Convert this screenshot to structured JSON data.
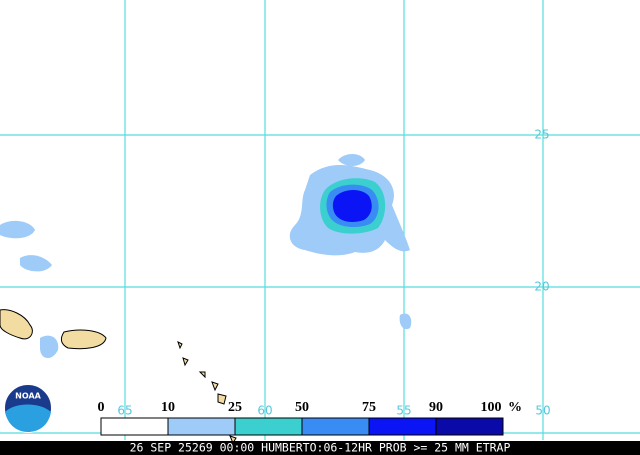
{
  "map": {
    "logo": "NOAA",
    "lat_labels": [
      "25",
      "20"
    ],
    "lon_labels": [
      "65",
      "60",
      "55",
      "50"
    ],
    "legend": {
      "labels": [
        "0",
        "10",
        "25",
        "50",
        "75",
        "90",
        "100"
      ],
      "unit": "%",
      "colors": [
        "#ffffff",
        "#9ecbf7",
        "#3ccfcf",
        "#3a8cf5",
        "#0a14f5",
        "#0a0aa8"
      ]
    },
    "footer": "26 SEP 25269 00:00 HUMBERTO:06-12HR PROB >= 25 MM ETRAP"
  }
}
